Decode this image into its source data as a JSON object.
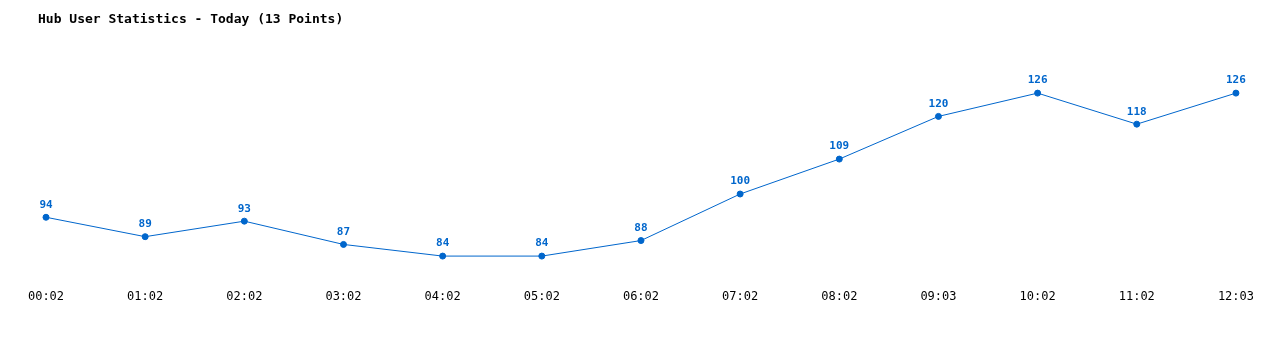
{
  "chart_data": {
    "type": "line",
    "title": "Hub User Statistics - Today (13 Points)",
    "categories": [
      "00:02",
      "01:02",
      "02:02",
      "03:02",
      "04:02",
      "05:02",
      "06:02",
      "07:02",
      "08:02",
      "09:03",
      "10:02",
      "11:02",
      "12:03"
    ],
    "series": [
      {
        "color": "#0066cc",
        "values": [
          94,
          89,
          93,
          87,
          84,
          84,
          88,
          100,
          109,
          120,
          126,
          118,
          126
        ]
      }
    ],
    "relative": false,
    "data_labels": true,
    "marker": "circle",
    "grid": false,
    "legend": false
  }
}
